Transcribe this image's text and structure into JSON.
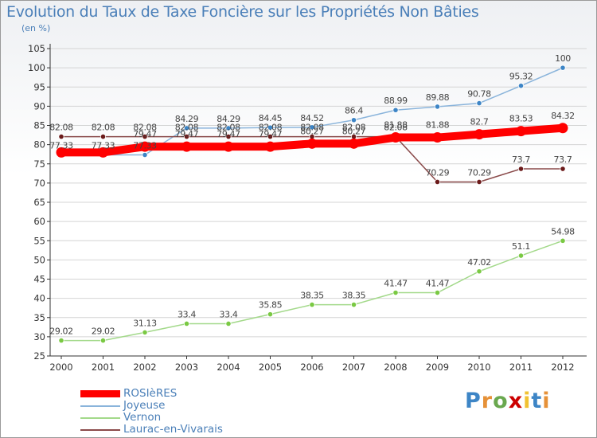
{
  "header": {
    "title": "Evolution du Taux de Taxe Foncière sur les Propriétés Non Bâties",
    "unit": "(en %)"
  },
  "colors": {
    "axis": "#333333",
    "grid": "#d4d4d4",
    "tick_text": "#333333",
    "label_text": "#444444",
    "accent_text": "#4a7fb8"
  },
  "chart_data": {
    "type": "line",
    "title": "Evolution du Taux de Taxe Foncière sur les Propriétés Non Bâties",
    "ylabel": "(en %)",
    "xlabel": "",
    "ylim": [
      25,
      105
    ],
    "yticks": [
      25,
      30,
      35,
      40,
      45,
      50,
      55,
      60,
      65,
      70,
      75,
      80,
      85,
      90,
      95,
      100,
      105
    ],
    "x": [
      "2000",
      "2001",
      "2002",
      "2003",
      "2004",
      "2005",
      "2006",
      "2007",
      "2008",
      "2009",
      "2010",
      "2011",
      "2012"
    ],
    "grid": true,
    "legend": "bottom-left",
    "series": [
      {
        "name": "ROSIèRES",
        "color": "#ff0000",
        "marker_color": "#ff0000",
        "width": 10,
        "values": [
          77.98,
          77.98,
          79.47,
          79.47,
          79.47,
          79.47,
          80.27,
          80.27,
          81.88,
          81.88,
          82.7,
          83.53,
          84.32
        ],
        "labels": [
          "",
          "",
          "79.47",
          "79.47",
          "79.47",
          "79.47",
          "80.27",
          "80.27",
          "81.88",
          "81.88",
          "82.7",
          "83.53",
          "84.32"
        ]
      },
      {
        "name": "Joyeuse",
        "color": "#8ab4db",
        "marker_color": "#3d85c6",
        "width": 1.5,
        "values": [
          77.33,
          77.33,
          77.33,
          84.29,
          84.29,
          84.45,
          84.52,
          86.4,
          88.99,
          89.88,
          90.78,
          95.32,
          100
        ],
        "labels": [
          "77.33",
          "77.33",
          "77.33",
          "84.29",
          "84.29",
          "84.45",
          "84.52",
          "86.4",
          "88.99",
          "89.88",
          "90.78",
          "95.32",
          "100"
        ]
      },
      {
        "name": "Vernon",
        "color": "#a3d98a",
        "marker_color": "#7ac943",
        "width": 1.5,
        "values": [
          29.02,
          29.02,
          31.13,
          33.4,
          33.4,
          35.85,
          38.35,
          38.35,
          41.47,
          41.47,
          47.02,
          51.1,
          54.98
        ],
        "labels": [
          "29.02",
          "29.02",
          "31.13",
          "33.4",
          "33.4",
          "35.85",
          "38.35",
          "38.35",
          "41.47",
          "41.47",
          "47.02",
          "51.1",
          "54.98"
        ]
      },
      {
        "name": "Laurac-en-Vivarais",
        "color": "#8a4a4a",
        "marker_color": "#6b1a1a",
        "width": 1.5,
        "values": [
          82.08,
          82.08,
          82.08,
          82.08,
          82.08,
          82.08,
          82.08,
          82.08,
          82.08,
          70.29,
          70.29,
          73.7,
          73.7
        ],
        "labels": [
          "82.08",
          "82.08",
          "82.08",
          "82.08",
          "82.08",
          "82.08",
          "82.08",
          "82.08",
          "82.08",
          "70.29",
          "70.29",
          "73.7",
          "73.7"
        ]
      }
    ]
  },
  "logo": {
    "text": "Proxiti",
    "letter_colors": [
      "#3d85c6",
      "#e69138",
      "#6aa84f",
      "#cc0000",
      "#f1c232",
      "#3d85c6",
      "#e69138"
    ]
  }
}
